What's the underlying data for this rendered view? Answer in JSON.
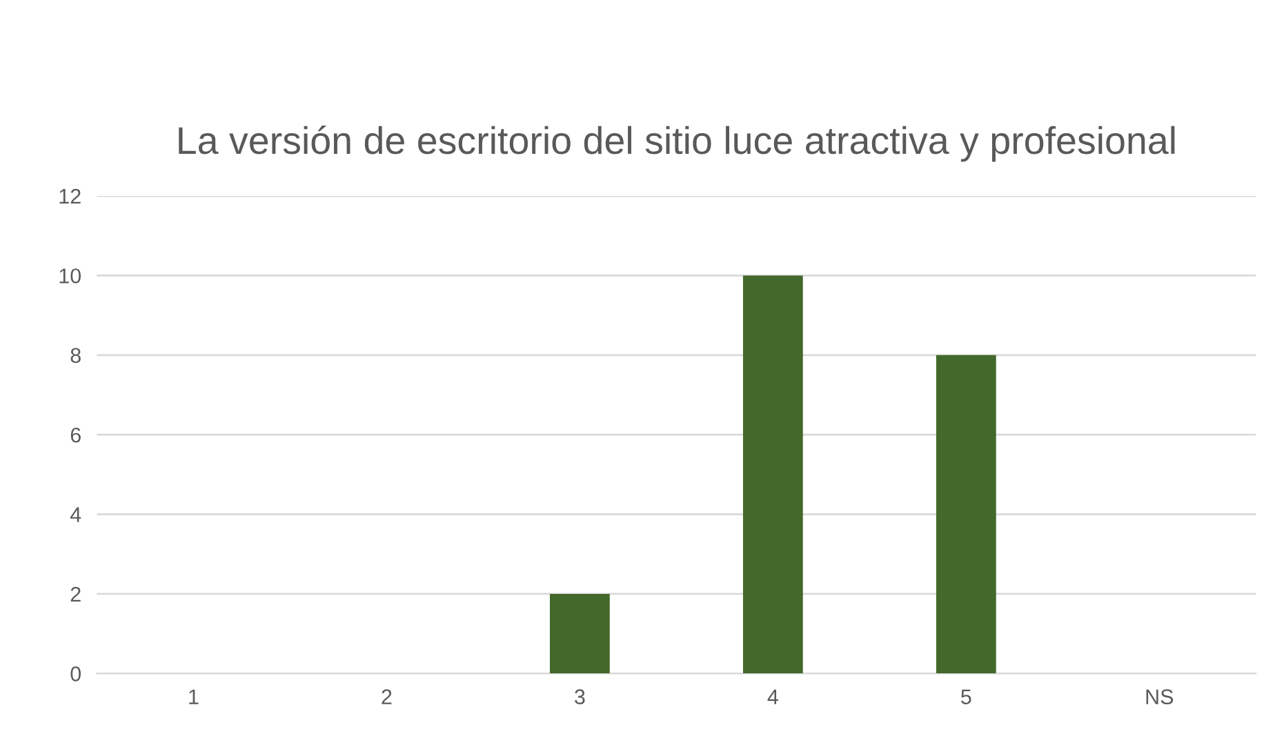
{
  "chart_data": {
    "type": "bar",
    "title": "La versión de escritorio del sitio luce atractiva y profesional",
    "categories": [
      "1",
      "2",
      "3",
      "4",
      "5",
      "NS"
    ],
    "values": [
      0,
      0,
      2,
      10,
      8,
      0
    ],
    "color": "#43682b",
    "ylim": [
      0,
      12
    ],
    "yticks": [
      0,
      2,
      4,
      6,
      8,
      10,
      12
    ],
    "grid": "y",
    "legend": false
  }
}
